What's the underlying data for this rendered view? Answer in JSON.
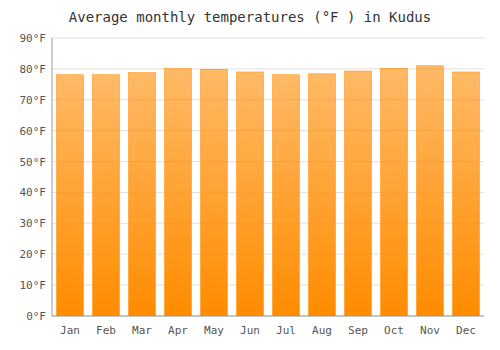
{
  "chart_data": {
    "type": "bar",
    "title": "Average monthly temperatures (°F ) in Kudus",
    "categories": [
      "Jan",
      "Feb",
      "Mar",
      "Apr",
      "May",
      "Jun",
      "Jul",
      "Aug",
      "Sep",
      "Oct",
      "Nov",
      "Dec"
    ],
    "values": [
      78.1,
      78.1,
      78.8,
      80.1,
      79.9,
      79.0,
      78.1,
      78.4,
      79.3,
      80.2,
      81.0,
      79.0
    ],
    "color": "#FF8C00",
    "ylim": [
      0,
      90
    ],
    "yticks": [
      {
        "value": 0,
        "label": "0°F"
      },
      {
        "value": 10,
        "label": "10°F"
      },
      {
        "value": 20,
        "label": "20°F"
      },
      {
        "value": 30,
        "label": "30°F"
      },
      {
        "value": 40,
        "label": "40°F"
      },
      {
        "value": 50,
        "label": "50°F"
      },
      {
        "value": 60,
        "label": "60°F"
      },
      {
        "value": 70,
        "label": "70°F"
      },
      {
        "value": 80,
        "label": "80°F"
      },
      {
        "value": 90,
        "label": "90°F"
      }
    ],
    "grid": true
  }
}
